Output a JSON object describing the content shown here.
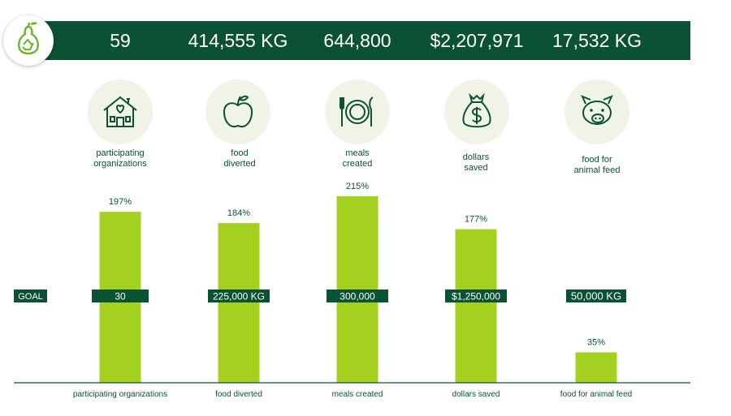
{
  "colors": {
    "dark_green": "#0b5133",
    "bar_green": "#a4d11f",
    "icon_bg": "#f0f4e6"
  },
  "header": {
    "stats": [
      "59",
      "414,555 KG",
      "644,800",
      "$2,207,971",
      "17,532 KG"
    ]
  },
  "icons": [
    {
      "icon": "house-heart-icon",
      "label_lines": [
        "participating",
        "organizations"
      ]
    },
    {
      "icon": "apple-icon",
      "label_lines": [
        "food",
        "diverted"
      ]
    },
    {
      "icon": "plate-utensils-icon",
      "label_lines": [
        "meals",
        "created"
      ]
    },
    {
      "icon": "money-bag-icon",
      "label_lines": [
        "dollars",
        "saved"
      ]
    },
    {
      "icon": "pig-icon",
      "label_lines": [
        "food for",
        "animal feed"
      ]
    }
  ],
  "chart_data": {
    "type": "bar",
    "title": "",
    "categories": [
      "participating organizations",
      "food diverted",
      "meals created",
      "dollars saved",
      "food for animal feed"
    ],
    "values": [
      197,
      184,
      215,
      177,
      35
    ],
    "value_labels": [
      "197%",
      "184%",
      "215%",
      "177%",
      "35%"
    ],
    "unit": "% of goal",
    "goal_label": "GOAL",
    "goal_value": 100,
    "goals": [
      "30",
      "225,000 KG",
      "300,000",
      "$1,250,000",
      "50,000 KG"
    ],
    "ylim": [
      0,
      235
    ],
    "xlabel": "",
    "ylabel": ""
  }
}
